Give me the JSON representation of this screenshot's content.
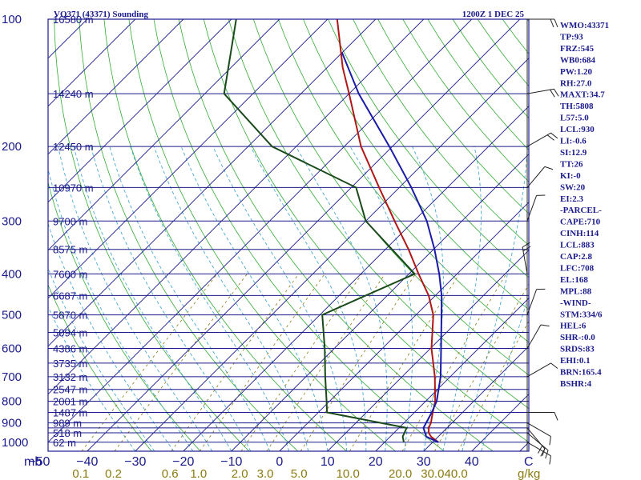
{
  "chart_data": {
    "type": "skew-t",
    "title": "VQ371 (43371) Sounding",
    "valid_time": "1200Z  1 DEC 25",
    "pressure_unit": "mb",
    "mixing_ratio_unit": "g/kg",
    "p_top": 100,
    "p_bottom": 1050,
    "t_range": [
      -50,
      50
    ],
    "pressure_levels": [
      100,
      150,
      200,
      250,
      300,
      350,
      400,
      450,
      500,
      550,
      600,
      650,
      700,
      750,
      800,
      850,
      900,
      925,
      950,
      1000
    ],
    "pressure_labels": [
      {
        "p": 100,
        "text": "100"
      },
      {
        "p": 200,
        "text": "200"
      },
      {
        "p": 300,
        "text": "300"
      },
      {
        "p": 400,
        "text": "400"
      },
      {
        "p": 500,
        "text": "500"
      },
      {
        "p": 600,
        "text": "600"
      },
      {
        "p": 700,
        "text": "700"
      },
      {
        "p": 800,
        "text": "800"
      },
      {
        "p": 900,
        "text": "900"
      },
      {
        "p": 1000,
        "text": "1000"
      }
    ],
    "height_labels": [
      {
        "p": 100,
        "text": "16580 m"
      },
      {
        "p": 150,
        "text": "14240 m"
      },
      {
        "p": 200,
        "text": "12450 m"
      },
      {
        "p": 250,
        "text": "10970 m"
      },
      {
        "p": 300,
        "text": "9700 m"
      },
      {
        "p": 350,
        "text": "8575 m"
      },
      {
        "p": 400,
        "text": "7600 m"
      },
      {
        "p": 450,
        "text": "6687 m"
      },
      {
        "p": 500,
        "text": "5870 m"
      },
      {
        "p": 550,
        "text": "5094 m"
      },
      {
        "p": 600,
        "text": "4386 m"
      },
      {
        "p": 650,
        "text": "3735 m"
      },
      {
        "p": 700,
        "text": "3132 m"
      },
      {
        "p": 750,
        "text": "2547 m"
      },
      {
        "p": 800,
        "text": "2001 m"
      },
      {
        "p": 850,
        "text": "1487 m"
      },
      {
        "p": 900,
        "text": "989 m"
      },
      {
        "p": 950,
        "text": "518 m"
      },
      {
        "p": 1000,
        "text": "62 m"
      }
    ],
    "temperature_ticks": [
      -50,
      -40,
      -30,
      -20,
      -10,
      0,
      10,
      20,
      30,
      40
    ],
    "temperature_labels": [
      "−50",
      "−40",
      "−30",
      "−20",
      "−10",
      "0",
      "10",
      "20",
      "30",
      "40"
    ],
    "corner_label": "C",
    "mixing_ratio_labels": [
      "0.1",
      "0.2",
      "0.6",
      "1.0",
      "2.0",
      "3.0",
      "5.0",
      "10.0",
      "20.0",
      "30.0",
      "40.0"
    ],
    "mixing_ratio_values": [
      0.1,
      0.2,
      0.6,
      1.0,
      2.0,
      3.0,
      5.0,
      10.0,
      20.0,
      30.0,
      40.0
    ],
    "series": [
      {
        "name": "Temperature",
        "color": "#b01818",
        "points": [
          [
            1000,
            31.2
          ],
          [
            970,
            28.5
          ],
          [
            950,
            27.2
          ],
          [
            925,
            26.2
          ],
          [
            900,
            25.6
          ],
          [
            850,
            23.8
          ],
          [
            800,
            22.0
          ],
          [
            700,
            16.8
          ],
          [
            600,
            10.2
          ],
          [
            500,
            3.6
          ],
          [
            450,
            -1.4
          ],
          [
            400,
            -8.0
          ],
          [
            350,
            -15.2
          ],
          [
            300,
            -24.0
          ],
          [
            250,
            -34.2
          ],
          [
            200,
            -46.5
          ],
          [
            150,
            -60.0
          ],
          [
            130,
            -66.8
          ],
          [
            100,
            -78.0
          ]
        ]
      },
      {
        "name": "Dewpoint",
        "color": "#1a4a1a",
        "points": [
          [
            1000,
            24.0
          ],
          [
            970,
            22.6
          ],
          [
            925,
            21.6
          ],
          [
            850,
            1.8
          ],
          [
            800,
            -0.6
          ],
          [
            700,
            -6.0
          ],
          [
            600,
            -12.0
          ],
          [
            500,
            -19.5
          ],
          [
            450,
            -14.5
          ],
          [
            400,
            -8.8
          ],
          [
            300,
            -30.0
          ],
          [
            250,
            -39.0
          ],
          [
            200,
            -65.0
          ],
          [
            150,
            -86.0
          ],
          [
            100,
            -99.0
          ]
        ]
      },
      {
        "name": "Parcel",
        "color": "#1a1aa8",
        "points": [
          [
            1000,
            31.2
          ],
          [
            970,
            27.5
          ],
          [
            925,
            25.1
          ],
          [
            900,
            24.6
          ],
          [
            850,
            23.6
          ],
          [
            800,
            22.3
          ],
          [
            700,
            18.0
          ],
          [
            600,
            12.2
          ],
          [
            500,
            5.3
          ],
          [
            450,
            1.3
          ],
          [
            400,
            -3.7
          ],
          [
            350,
            -9.8
          ],
          [
            300,
            -17.3
          ],
          [
            250,
            -27.5
          ],
          [
            200,
            -40.6
          ],
          [
            150,
            -58.0
          ],
          [
            120,
            -70.0
          ]
        ]
      }
    ],
    "winds": [
      {
        "p": 1000,
        "dir": 120,
        "spd": 10
      },
      {
        "p": 950,
        "dir": 130,
        "spd": 15
      },
      {
        "p": 925,
        "dir": 140,
        "spd": 15
      },
      {
        "p": 900,
        "dir": 120,
        "spd": 10
      },
      {
        "p": 850,
        "dir": 90,
        "spd": 10
      },
      {
        "p": 700,
        "dir": 60,
        "spd": 10
      },
      {
        "p": 600,
        "dir": 30,
        "spd": 10
      },
      {
        "p": 500,
        "dir": 20,
        "spd": 10
      },
      {
        "p": 400,
        "dir": 350,
        "spd": 15
      },
      {
        "p": 300,
        "dir": 20,
        "spd": 10
      },
      {
        "p": 250,
        "dir": 40,
        "spd": 10
      },
      {
        "p": 200,
        "dir": 60,
        "spd": 15
      },
      {
        "p": 150,
        "dir": 80,
        "spd": 20
      },
      {
        "p": 100,
        "dir": 90,
        "spd": 20
      }
    ]
  },
  "indices": [
    "WMO:43371",
    "TP:93",
    "FRZ:545",
    "WB0:684",
    "PW:1.20",
    "RH:27.0",
    "MAXT:34.7",
    "TH:5808",
    "L57:5.0",
    "LCL:930",
    "LI:-0.6",
    "SI:12.9",
    "TT:26",
    "KI:-0",
    "SW:20",
    "EI:2.3",
    "-PARCEL-",
    "CAPE:710",
    "CINH:114",
    "LCL:883",
    "CAP:2.8",
    "LFC:708",
    "EL:168",
    "MPL:88",
    "-WIND-",
    "STM:334/6",
    "HEL:6",
    "SHR-:0.0",
    "SRDS:83",
    "EHI:0.1",
    "BRN:165.4",
    "BSHR:4"
  ],
  "colors": {
    "frame": "#1a1a8c",
    "isobar": "#1a1a8c",
    "isotherm": "#1a1a8c",
    "dry_adiabat": "#33aa33",
    "moist_adiabat": "#4aaad0",
    "mixing_ratio": "#8a7a10",
    "wind": "#222222"
  }
}
